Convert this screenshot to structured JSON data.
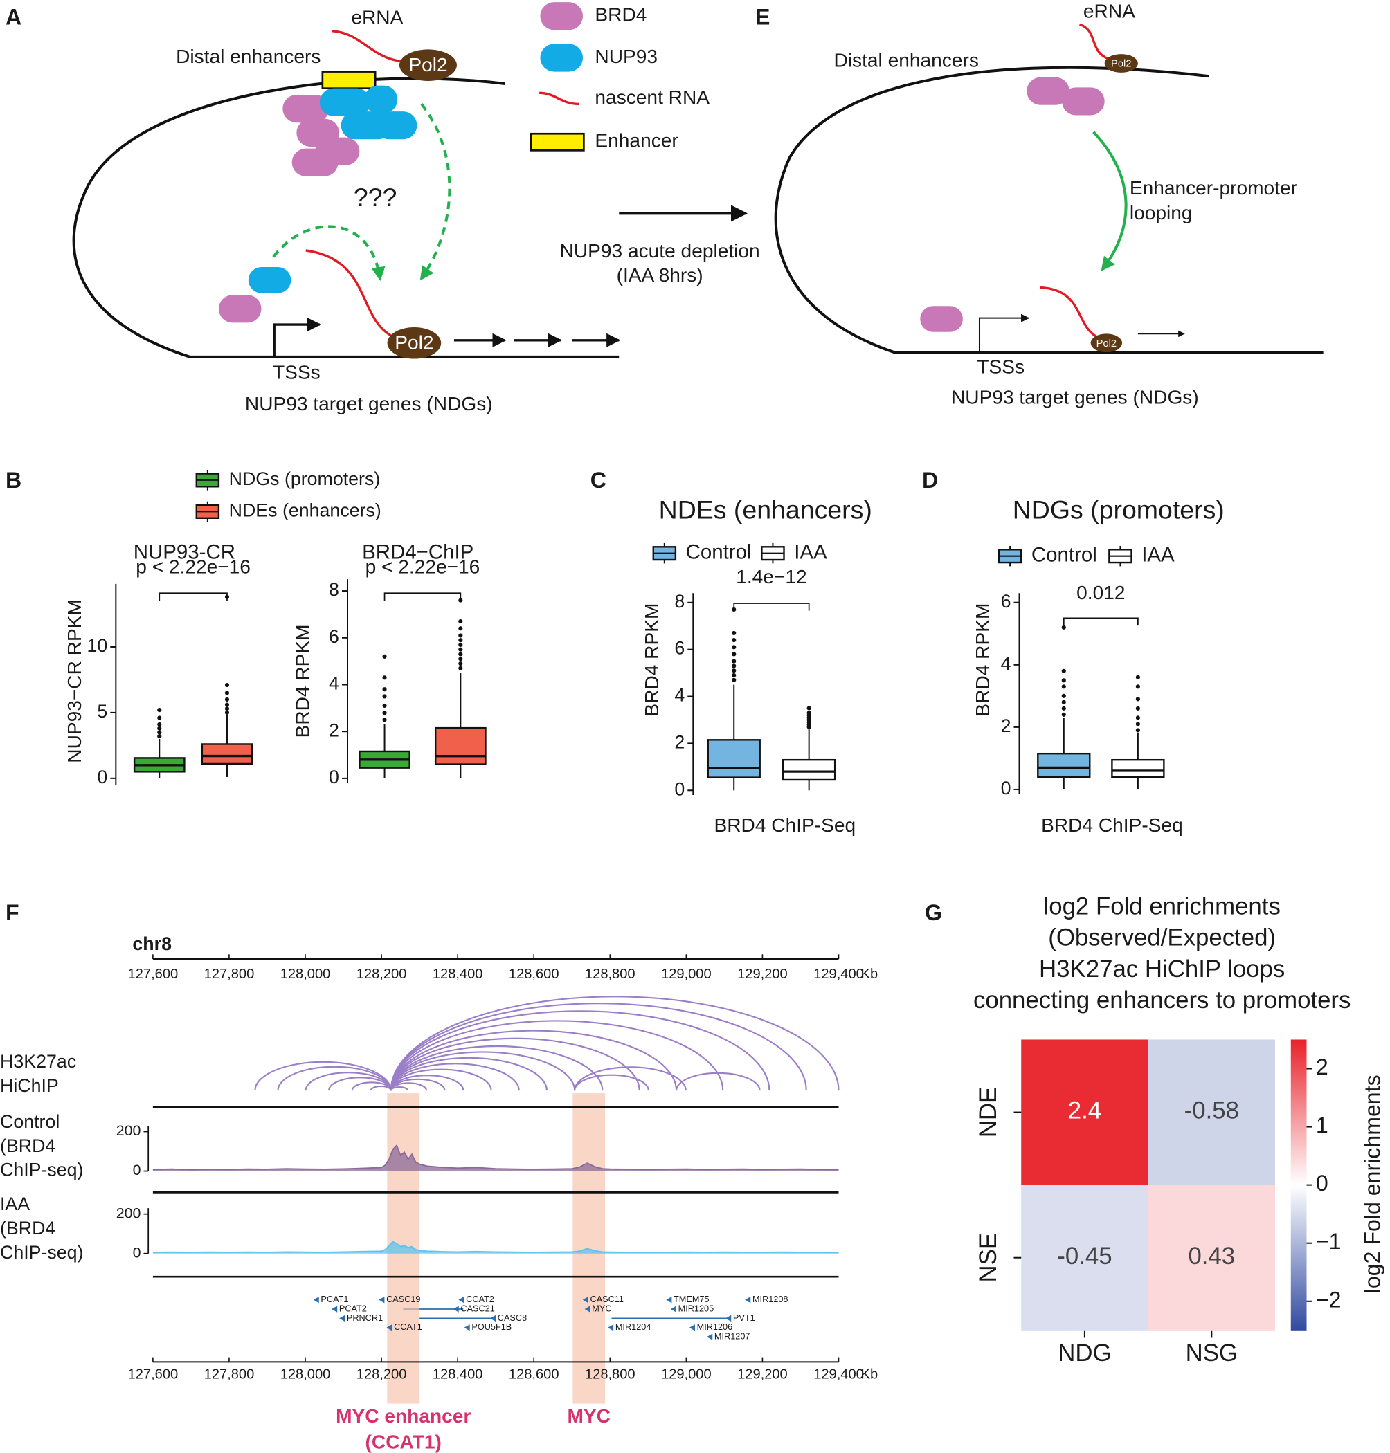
{
  "panel_labels": [
    "A",
    "B",
    "C",
    "D",
    "E",
    "F",
    "G"
  ],
  "diagram_a": {
    "erna": "eRNA",
    "enhancers": "Distal enhancers",
    "pol2_top": "Pol2",
    "question": "???",
    "pol2_bottom": "Pol2",
    "tss": "TSSs",
    "genes": "NUP93 target genes  (NDGs)"
  },
  "legend_a": [
    "BRD4",
    "NUP93",
    "nascent RNA",
    "Enhancer"
  ],
  "transition": [
    "NUP93 acute depletion",
    "(IAA 8hrs)"
  ],
  "diagram_e": {
    "erna": "eRNA",
    "enhancers": "Distal enhancers",
    "pol2_top": "Pol2",
    "looping": [
      "Enhancer-promoter",
      "looping"
    ],
    "pol2_bottom": "Pol2",
    "tss": "TSSs",
    "genes": "NUP93 target genes  (NDGs)"
  },
  "chart_data": [
    {
      "type": "box",
      "title": "NUP93-CR",
      "ylabel": "NUP93−CR RPKM",
      "annotation": "p < 2.22e−16",
      "ylim": [
        -0.5,
        14.8
      ],
      "yticks": [
        0,
        5,
        10
      ],
      "boxes": [
        {
          "name": "NDGs (promoters)",
          "color": "#3aa935",
          "min": 0,
          "q1": 0.5,
          "median": 1.0,
          "q3": 1.55,
          "max": 3.0,
          "outliers": [
            3.2,
            3.5,
            3.8,
            4.1,
            4.6,
            5.2
          ]
        },
        {
          "name": "NDEs (enhancers)",
          "color": "#f0604a",
          "min": 0.1,
          "q1": 1.1,
          "median": 1.7,
          "q3": 2.6,
          "max": 4.8,
          "outliers": [
            5.0,
            5.3,
            5.6,
            6.0,
            6.5,
            7.1,
            13.8
          ]
        }
      ]
    },
    {
      "type": "box",
      "title": "BRD4−ChIP",
      "ylabel": "BRD4 RPKM",
      "annotation": "p < 2.22e−16",
      "ylim": [
        -0.2,
        8.5
      ],
      "yticks": [
        0,
        2,
        4,
        6,
        8
      ],
      "boxes": [
        {
          "color": "#3aa935",
          "min": 0,
          "q1": 0.45,
          "median": 0.8,
          "q3": 1.15,
          "max": 2.3,
          "outliers": [
            2.5,
            2.8,
            3.1,
            3.5,
            3.8,
            4.3,
            5.2
          ]
        },
        {
          "color": "#f0604a",
          "min": 0,
          "q1": 0.6,
          "median": 0.95,
          "q3": 2.15,
          "max": 4.5,
          "outliers": [
            4.7,
            4.9,
            5.1,
            5.3,
            5.5,
            5.7,
            5.9,
            6.1,
            6.4,
            6.7,
            7.6
          ]
        }
      ]
    },
    {
      "type": "box",
      "title": "NDEs (enhancers)",
      "ylabel": "BRD4 RPKM",
      "xlabel": "BRD4 ChIP-Seq",
      "annotation": "1.4e−12",
      "ylim": [
        -0.2,
        8.4
      ],
      "yticks": [
        0,
        2,
        4,
        6,
        8
      ],
      "boxes": [
        {
          "name": "Control",
          "color": "#74b4e0",
          "min": 0,
          "q1": 0.55,
          "median": 0.95,
          "q3": 2.15,
          "max": 4.5,
          "outliers": [
            4.7,
            4.9,
            5.1,
            5.3,
            5.5,
            5.8,
            6.1,
            6.4,
            6.7,
            7.7
          ]
        },
        {
          "name": "IAA",
          "color": "#ffffff",
          "min": 0,
          "q1": 0.45,
          "median": 0.8,
          "q3": 1.3,
          "max": 2.6,
          "outliers": [
            2.7,
            2.8,
            2.9,
            3.0,
            3.1,
            3.2,
            3.3,
            3.5
          ]
        }
      ]
    },
    {
      "type": "box",
      "title": "NDGs (promoters)",
      "ylabel": "BRD4 RPKM",
      "xlabel": "BRD4 ChIP-Seq",
      "annotation": "0.012",
      "ylim": [
        -0.15,
        6.3
      ],
      "yticks": [
        0,
        2,
        4,
        6
      ],
      "boxes": [
        {
          "name": "Control",
          "color": "#74b4e0",
          "min": 0,
          "q1": 0.4,
          "median": 0.7,
          "q3": 1.15,
          "max": 2.3,
          "outliers": [
            2.4,
            2.6,
            2.8,
            3.0,
            3.3,
            3.5,
            3.8,
            5.2
          ]
        },
        {
          "name": "IAA",
          "color": "#ffffff",
          "min": 0,
          "q1": 0.4,
          "median": 0.6,
          "q3": 0.95,
          "max": 1.8,
          "outliers": [
            1.9,
            2.1,
            2.3,
            2.6,
            2.9,
            3.3,
            3.6
          ]
        }
      ]
    },
    {
      "type": "genome_tracks",
      "chrom": "chr8",
      "unit": "Kb",
      "xlim": [
        127600,
        129400
      ],
      "xticks": [
        {
          "value": 127600,
          "label": "127,600"
        },
        {
          "value": 127800,
          "label": "127,800"
        },
        {
          "value": 128000,
          "label": "128,000"
        },
        {
          "value": 128200,
          "label": "128,200"
        },
        {
          "value": 128400,
          "label": "128,400"
        },
        {
          "value": 128600,
          "label": "128,600"
        },
        {
          "value": 128800,
          "label": "128,800"
        },
        {
          "value": 129000,
          "label": "129,000"
        },
        {
          "value": 129200,
          "label": "129,200"
        },
        {
          "value": 129400,
          "label": "129,400"
        }
      ],
      "x": [
        127600,
        127650,
        127700,
        127750,
        127800,
        127850,
        127900,
        127950,
        128000,
        128050,
        128100,
        128150,
        128200,
        128210,
        128220,
        128230,
        128240,
        128250,
        128260,
        128270,
        128280,
        128290,
        128300,
        128320,
        128350,
        128400,
        128450,
        128500,
        128550,
        128600,
        128650,
        128700,
        128720,
        128740,
        128760,
        128780,
        128800,
        128850,
        128900,
        128950,
        129000,
        129050,
        129100,
        129150,
        129200,
        129250,
        129300,
        129350,
        129400
      ],
      "arc_track": {
        "label": [
          "H3K27ac",
          "HiChIP"
        ],
        "color": "#9b7ec8",
        "arcs": [
          [
            127868,
            128225
          ],
          [
            127928,
            128225
          ],
          [
            128001,
            128225
          ],
          [
            128062,
            128225
          ],
          [
            128123,
            128225
          ],
          [
            128172,
            128225
          ],
          [
            128225,
            128269
          ],
          [
            128225,
            128318
          ],
          [
            128225,
            128366
          ],
          [
            128225,
            128415
          ],
          [
            128225,
            128488
          ],
          [
            128225,
            128561
          ],
          [
            128225,
            128634
          ],
          [
            128225,
            128707
          ],
          [
            128225,
            128780
          ],
          [
            128225,
            128877
          ],
          [
            128225,
            128974
          ],
          [
            128225,
            129096
          ],
          [
            128225,
            129218
          ],
          [
            128225,
            129315
          ],
          [
            128225,
            129400
          ],
          [
            128707,
            128901
          ],
          [
            128707,
            128999
          ],
          [
            128974,
            129193
          ]
        ]
      },
      "signal_tracks": [
        {
          "label": [
            "Control",
            "(BRD4",
            "ChIP-seq)"
          ],
          "color": "#8a6a9a",
          "ylim": [
            0,
            230
          ],
          "yticks": [
            0,
            200
          ],
          "values": [
            8,
            10,
            7,
            9,
            8,
            10,
            9,
            12,
            10,
            9,
            11,
            14,
            18,
            30,
            60,
            110,
            130,
            80,
            95,
            60,
            85,
            45,
            35,
            25,
            20,
            15,
            18,
            12,
            10,
            9,
            10,
            12,
            20,
            40,
            22,
            12,
            10,
            9,
            8,
            9,
            10,
            8,
            9,
            10,
            8,
            9,
            10,
            8,
            7
          ]
        },
        {
          "label": [
            "IAA",
            "(BRD4",
            "ChIP-seq)"
          ],
          "color": "#5cc3ee",
          "ylim": [
            0,
            230
          ],
          "yticks": [
            0,
            200
          ],
          "values": [
            6,
            7,
            6,
            7,
            6,
            7,
            6,
            8,
            7,
            6,
            8,
            10,
            12,
            20,
            40,
            60,
            50,
            35,
            40,
            30,
            35,
            20,
            15,
            12,
            10,
            8,
            10,
            8,
            7,
            6,
            7,
            8,
            12,
            25,
            14,
            8,
            7,
            6,
            6,
            6,
            7,
            6,
            7,
            6,
            6,
            7,
            6,
            6,
            5
          ]
        }
      ],
      "genes": [
        {
          "name": "PCAT1",
          "pos": 128031,
          "row": 0
        },
        {
          "name": "PCAT2",
          "pos": 128079,
          "row": 1
        },
        {
          "name": "PRNCR1",
          "pos": 128099,
          "row": 2
        },
        {
          "name": "CASC19",
          "pos": 128203,
          "row": 0
        },
        {
          "name": "CCAT1",
          "pos": 128223,
          "row": 3
        },
        {
          "name": "CCAT2",
          "pos": 128412,
          "row": 0
        },
        {
          "name": "CASC21",
          "pos": 128398,
          "row": 1
        },
        {
          "name": "CASC8",
          "pos": 128495,
          "row": 2
        },
        {
          "name": "POU5F1B",
          "pos": 128427,
          "row": 3
        },
        {
          "name": "CASC11",
          "pos": 128738,
          "row": 0
        },
        {
          "name": "MYC",
          "pos": 128743,
          "row": 1
        },
        {
          "name": "MIR1204",
          "pos": 128804,
          "row": 3
        },
        {
          "name": "TMEM75",
          "pos": 128957,
          "row": 0
        },
        {
          "name": "MIR1205",
          "pos": 128969,
          "row": 1
        },
        {
          "name": "PVT1",
          "pos": 129113,
          "row": 2
        },
        {
          "name": "MIR1206",
          "pos": 129018,
          "row": 3
        },
        {
          "name": "MIR1207",
          "pos": 129064,
          "row": 4
        },
        {
          "name": "MIR1208",
          "pos": 129164,
          "row": 0
        }
      ],
      "highlights": [
        {
          "label": [
            "MYC enhancer",
            "(CCAT1)"
          ],
          "start": 128215,
          "end": 128300
        },
        {
          "label": [
            "MYC"
          ],
          "start": 128702,
          "end": 128787
        }
      ]
    },
    {
      "type": "heatmap",
      "title": [
        "log2 Fold enrichments",
        "(Observed/Expected)",
        "H3K27ac HiChIP loops",
        "connecting enhancers to promoters"
      ],
      "rows": [
        "NDE",
        "NSE"
      ],
      "columns": [
        "NDG",
        "NSG"
      ],
      "values": [
        [
          2.4,
          -0.58
        ],
        [
          -0.45,
          0.43
        ]
      ],
      "colorbar_label": "log2 Fold enrichments",
      "clim": [
        -2.5,
        2.5
      ],
      "cticks": [
        2,
        1,
        0,
        {
          "value": -1,
          "label": "−1"
        },
        {
          "value": -2,
          "label": "−2"
        }
      ]
    }
  ]
}
